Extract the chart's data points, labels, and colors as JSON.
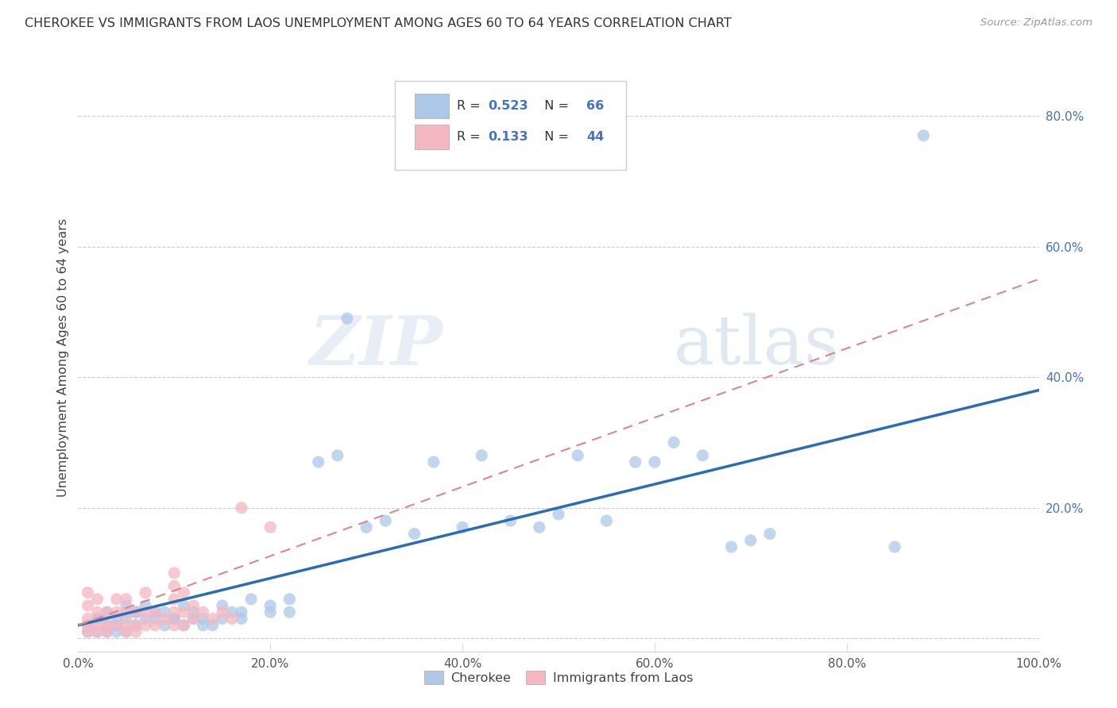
{
  "title": "CHEROKEE VS IMMIGRANTS FROM LAOS UNEMPLOYMENT AMONG AGES 60 TO 64 YEARS CORRELATION CHART",
  "source": "Source: ZipAtlas.com",
  "ylabel": "Unemployment Among Ages 60 to 64 years",
  "xlim": [
    0,
    1.0
  ],
  "ylim": [
    -0.02,
    0.88
  ],
  "x_tick_positions": [
    0.0,
    0.2,
    0.4,
    0.6,
    0.8,
    1.0
  ],
  "x_tick_labels": [
    "0.0%",
    "20.0%",
    "40.0%",
    "60.0%",
    "80.0%",
    "100.0%"
  ],
  "y_tick_positions": [
    0.0,
    0.2,
    0.4,
    0.6,
    0.8
  ],
  "y_tick_labels": [
    "",
    "20.0%",
    "40.0%",
    "60.0%",
    "80.0%"
  ],
  "cherokee_R": "0.523",
  "cherokee_N": "66",
  "laos_R": "0.133",
  "laos_N": "44",
  "cherokee_color": "#adc8e8",
  "laos_color": "#f4b8c2",
  "cherokee_line_color": "#2a6db5",
  "laos_line_color": "#d9868f",
  "watermark_zip": "ZIP",
  "watermark_atlas": "atlas",
  "background_color": "#ffffff",
  "cherokee_x": [
    0.88,
    0.01,
    0.02,
    0.03,
    0.04,
    0.05,
    0.06,
    0.07,
    0.08,
    0.09,
    0.1,
    0.11,
    0.12,
    0.13,
    0.14,
    0.15,
    0.16,
    0.17,
    0.18,
    0.2,
    0.22,
    0.25,
    0.27,
    0.28,
    0.3,
    0.32,
    0.35,
    0.37,
    0.4,
    0.42,
    0.45,
    0.48,
    0.5,
    0.52,
    0.55,
    0.58,
    0.6,
    0.62,
    0.65,
    0.68,
    0.7,
    0.72,
    0.85,
    0.01,
    0.01,
    0.02,
    0.02,
    0.03,
    0.03,
    0.04,
    0.04,
    0.05,
    0.05,
    0.06,
    0.06,
    0.07,
    0.08,
    0.09,
    0.1,
    0.11,
    0.12,
    0.13,
    0.15,
    0.17,
    0.2,
    0.22
  ],
  "cherokee_y": [
    0.77,
    0.02,
    0.03,
    0.04,
    0.03,
    0.05,
    0.04,
    0.05,
    0.03,
    0.04,
    0.03,
    0.05,
    0.04,
    0.03,
    0.02,
    0.05,
    0.04,
    0.03,
    0.06,
    0.04,
    0.06,
    0.27,
    0.28,
    0.49,
    0.17,
    0.18,
    0.16,
    0.27,
    0.17,
    0.28,
    0.18,
    0.17,
    0.19,
    0.28,
    0.18,
    0.27,
    0.27,
    0.3,
    0.28,
    0.14,
    0.15,
    0.16,
    0.14,
    0.01,
    0.02,
    0.01,
    0.03,
    0.01,
    0.02,
    0.01,
    0.02,
    0.01,
    0.03,
    0.02,
    0.04,
    0.03,
    0.04,
    0.02,
    0.03,
    0.02,
    0.03,
    0.02,
    0.03,
    0.04,
    0.05,
    0.04
  ],
  "laos_x": [
    0.01,
    0.01,
    0.01,
    0.01,
    0.01,
    0.02,
    0.02,
    0.02,
    0.02,
    0.03,
    0.03,
    0.03,
    0.04,
    0.04,
    0.04,
    0.05,
    0.05,
    0.05,
    0.05,
    0.06,
    0.06,
    0.06,
    0.07,
    0.07,
    0.07,
    0.08,
    0.08,
    0.09,
    0.1,
    0.1,
    0.1,
    0.1,
    0.1,
    0.11,
    0.11,
    0.11,
    0.12,
    0.12,
    0.13,
    0.14,
    0.15,
    0.16,
    0.17,
    0.2
  ],
  "laos_y": [
    0.01,
    0.02,
    0.03,
    0.05,
    0.07,
    0.01,
    0.02,
    0.04,
    0.06,
    0.01,
    0.02,
    0.04,
    0.02,
    0.04,
    0.06,
    0.01,
    0.02,
    0.04,
    0.06,
    0.01,
    0.02,
    0.04,
    0.02,
    0.04,
    0.07,
    0.02,
    0.04,
    0.03,
    0.02,
    0.04,
    0.06,
    0.08,
    0.1,
    0.02,
    0.04,
    0.07,
    0.03,
    0.05,
    0.04,
    0.03,
    0.04,
    0.03,
    0.2,
    0.17
  ]
}
